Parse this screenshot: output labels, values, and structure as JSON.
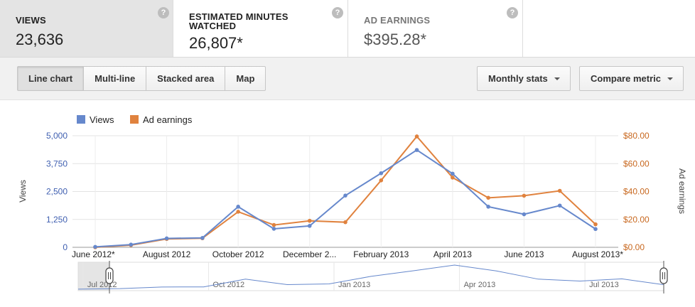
{
  "metrics": [
    {
      "label_lines": [
        "VIEWS"
      ],
      "value": "23,636",
      "active": true
    },
    {
      "label_lines": [
        "ESTIMATED MINUTES",
        "WATCHED"
      ],
      "value": "26,807*",
      "active": false
    },
    {
      "label_lines": [
        "AD EARNINGS"
      ],
      "value": "$395.28*",
      "active": false
    }
  ],
  "help_glyph": "?",
  "toolbar": {
    "chart_types": [
      "Line chart",
      "Multi-line",
      "Stacked area",
      "Map"
    ],
    "selected_chart_type": "Line chart",
    "monthly_stats_label": "Monthly stats",
    "compare_metric_label": "Compare metric"
  },
  "colors": {
    "views": "#6688cc",
    "ad_earnings": "#e0823e"
  },
  "chart_data": {
    "type": "line",
    "x": [
      "June 2012*",
      "July 2012",
      "August 2012",
      "September 2012",
      "October 2012",
      "November 2012",
      "December 2012",
      "January 2013",
      "February 2013",
      "March 2013",
      "April 2013",
      "May 2013",
      "June 2013",
      "July 2013",
      "August 2013*"
    ],
    "x_tick_labels": [
      "June 2012*",
      "August 2012",
      "October 2012",
      "December 2...",
      "February 2013",
      "April 2013",
      "June 2013",
      "August 2013*"
    ],
    "x_tick_indices": [
      0,
      2,
      4,
      6,
      8,
      10,
      12,
      14
    ],
    "series": [
      {
        "name": "Views",
        "axis": "left",
        "values": [
          20,
          120,
          400,
          420,
          1820,
          830,
          960,
          2320,
          3320,
          4360,
          3300,
          1820,
          1480,
          1870,
          820
        ]
      },
      {
        "name": "Ad earnings",
        "axis": "right",
        "values": [
          0,
          1.5,
          6,
          6.5,
          25.5,
          16,
          19,
          18,
          48,
          79.5,
          50,
          35.5,
          37,
          40.5,
          16.5
        ]
      }
    ],
    "yleft": {
      "label": "Views",
      "lim": [
        0,
        5000
      ],
      "ticks": [
        "0",
        "1,250",
        "2,500",
        "3,750",
        "5,000"
      ]
    },
    "yright": {
      "label": "Ad earnings",
      "lim": [
        0,
        80
      ],
      "ticks": [
        "$0.00",
        "$20.00",
        "$40.00",
        "$60.00",
        "$80.00"
      ]
    },
    "legend_placement": "top-left",
    "grid": true
  },
  "navigator": {
    "tick_labels": [
      "Jul 2012",
      "Oct 2012",
      "Jan 2013",
      "Apr 2013",
      "Jul 2013"
    ],
    "tick_indices": [
      1,
      4,
      7,
      10,
      13
    ]
  }
}
